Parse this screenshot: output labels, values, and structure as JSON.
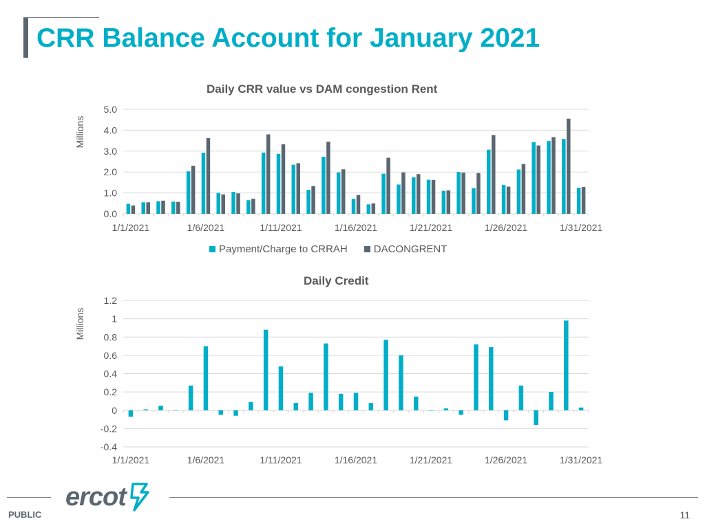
{
  "slide": {
    "title": "CRR Balance Account for January 2021",
    "footer_label": "PUBLIC",
    "page_number": "11",
    "logo_text": "ercot"
  },
  "colors": {
    "accent": "#00aec7",
    "secondary": "#5b6770",
    "grid": "#d9d9d9",
    "text": "#595959"
  },
  "chart_data": [
    {
      "type": "bar",
      "title": "Daily CRR value vs DAM congestion Rent",
      "ylabel": "Millions",
      "ylim": [
        0,
        5
      ],
      "yticks": [
        0,
        1,
        2,
        3,
        4,
        5
      ],
      "ytick_labels": [
        "0.0",
        "1.0",
        "2.0",
        "3.0",
        "4.0",
        "5.0"
      ],
      "categories": [
        "1/1/2021",
        "1/2/2021",
        "1/3/2021",
        "1/4/2021",
        "1/5/2021",
        "1/6/2021",
        "1/7/2021",
        "1/8/2021",
        "1/9/2021",
        "1/10/2021",
        "1/11/2021",
        "1/12/2021",
        "1/13/2021",
        "1/14/2021",
        "1/15/2021",
        "1/16/2021",
        "1/17/2021",
        "1/18/2021",
        "1/19/2021",
        "1/20/2021",
        "1/21/2021",
        "1/22/2021",
        "1/23/2021",
        "1/24/2021",
        "1/25/2021",
        "1/26/2021",
        "1/27/2021",
        "1/28/2021",
        "1/29/2021",
        "1/30/2021",
        "1/31/2021"
      ],
      "xtick_labels": [
        "1/1/2021",
        "1/6/2021",
        "1/11/2021",
        "1/16/2021",
        "1/21/2021",
        "1/26/2021",
        "1/31/2021"
      ],
      "series": [
        {
          "name": "Payment/Charge to CRRAH",
          "color": "#00aec7",
          "values": [
            0.48,
            0.55,
            0.6,
            0.58,
            2.03,
            2.92,
            1.0,
            1.05,
            0.65,
            2.93,
            2.87,
            2.35,
            1.15,
            2.73,
            1.98,
            0.72,
            0.45,
            1.92,
            1.4,
            1.75,
            1.63,
            1.1,
            2.0,
            1.23,
            3.07,
            1.38,
            2.12,
            3.43,
            3.48,
            3.58,
            1.25
          ]
        },
        {
          "name": "DACONGRENT",
          "color": "#5b6770",
          "values": [
            0.4,
            0.55,
            0.63,
            0.57,
            2.3,
            3.62,
            0.93,
            0.98,
            0.72,
            3.8,
            3.33,
            2.42,
            1.33,
            3.45,
            2.13,
            0.9,
            0.5,
            2.68,
            1.98,
            1.9,
            1.62,
            1.12,
            1.97,
            1.95,
            3.77,
            1.3,
            2.38,
            3.27,
            3.67,
            4.55,
            1.28
          ]
        }
      ],
      "legend": [
        "Payment/Charge to CRRAH",
        "DACONGRENT"
      ],
      "legend_position": "bottom"
    },
    {
      "type": "bar",
      "title": "Daily Credit",
      "ylabel": "Millions",
      "ylim": [
        -0.4,
        1.2
      ],
      "yticks": [
        -0.4,
        -0.2,
        0,
        0.2,
        0.4,
        0.6,
        0.8,
        1,
        1.2
      ],
      "ytick_labels": [
        "-0.4",
        "-0.2",
        "0",
        "0.2",
        "0.4",
        "0.6",
        "0.8",
        "1",
        "1.2"
      ],
      "categories": [
        "1/1/2021",
        "1/2/2021",
        "1/3/2021",
        "1/4/2021",
        "1/5/2021",
        "1/6/2021",
        "1/7/2021",
        "1/8/2021",
        "1/9/2021",
        "1/10/2021",
        "1/11/2021",
        "1/12/2021",
        "1/13/2021",
        "1/14/2021",
        "1/15/2021",
        "1/16/2021",
        "1/17/2021",
        "1/18/2021",
        "1/19/2021",
        "1/20/2021",
        "1/21/2021",
        "1/22/2021",
        "1/23/2021",
        "1/24/2021",
        "1/25/2021",
        "1/26/2021",
        "1/27/2021",
        "1/28/2021",
        "1/29/2021",
        "1/30/2021",
        "1/31/2021"
      ],
      "xtick_labels": [
        "1/1/2021",
        "1/6/2021",
        "1/11/2021",
        "1/16/2021",
        "1/21/2021",
        "1/26/2021",
        "1/31/2021"
      ],
      "series": [
        {
          "name": "Daily Credit",
          "color": "#00aec7",
          "values": [
            -0.07,
            0.01,
            0.05,
            0,
            0.27,
            0.7,
            -0.05,
            -0.06,
            0.09,
            0.88,
            0.48,
            0.08,
            0.19,
            0.73,
            0.18,
            0.19,
            0.08,
            0.77,
            0.6,
            0.15,
            0,
            0.02,
            -0.05,
            0.72,
            0.69,
            -0.11,
            0.27,
            -0.16,
            0.2,
            0.98,
            0.03
          ]
        }
      ]
    }
  ]
}
